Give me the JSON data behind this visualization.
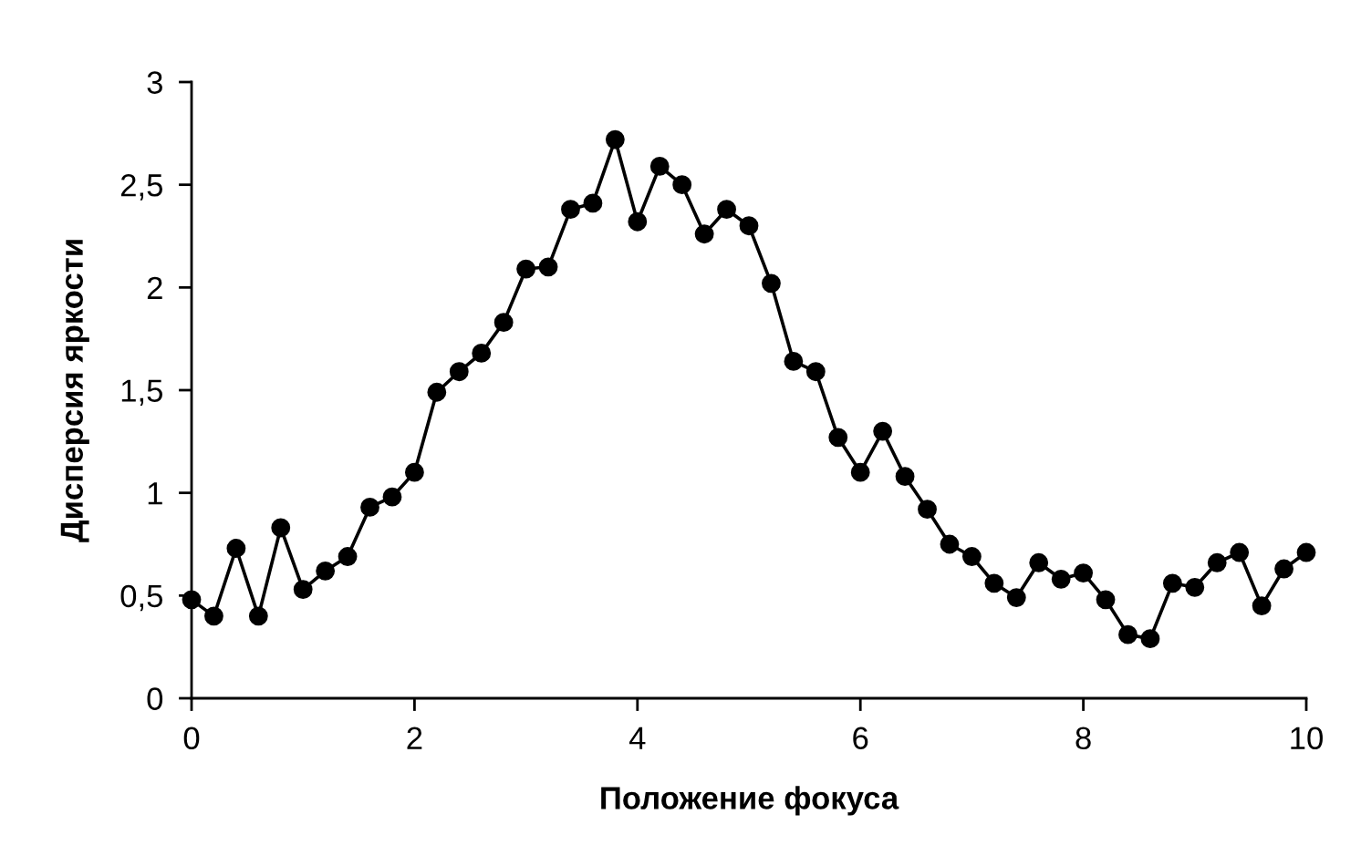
{
  "chart_data": {
    "type": "line",
    "xlabel": "Положение фокуса",
    "ylabel": "Дисперсия яркости",
    "x": [
      0,
      0.2,
      0.4,
      0.6,
      0.8,
      1,
      1.2,
      1.4,
      1.6,
      1.8,
      2,
      2.2,
      2.4,
      2.6,
      2.8,
      3,
      3.2,
      3.4,
      3.6,
      3.8,
      4,
      4.2,
      4.4,
      4.6,
      4.8,
      5,
      5.2,
      5.4,
      5.6,
      5.8,
      6,
      6.2,
      6.4,
      6.6,
      6.8,
      7,
      7.2,
      7.4,
      7.6,
      7.8,
      8,
      8.2,
      8.4,
      8.6,
      8.8,
      9,
      9.2,
      9.4,
      9.6,
      9.8,
      10
    ],
    "series": [
      {
        "color": "#000000",
        "values": [
          0.48,
          0.4,
          0.73,
          0.4,
          0.83,
          0.53,
          0.62,
          0.69,
          0.93,
          0.98,
          1.1,
          1.49,
          1.59,
          1.68,
          1.83,
          2.09,
          2.1,
          2.38,
          2.41,
          2.72,
          2.32,
          2.59,
          2.5,
          2.26,
          2.38,
          2.3,
          2.02,
          1.64,
          1.59,
          1.27,
          1.1,
          1.3,
          1.08,
          0.92,
          0.75,
          0.69,
          0.56,
          0.49,
          0.66,
          0.58,
          0.61,
          0.48,
          0.31,
          0.29,
          0.56,
          0.54,
          0.66,
          0.71,
          0.45,
          0.63,
          0.71
        ]
      }
    ],
    "xlim": [
      0,
      10
    ],
    "xticks": [
      0,
      2,
      4,
      6,
      8,
      10
    ],
    "ylim": [
      0,
      3
    ],
    "yticks": [
      0,
      {
        "value": 0.5,
        "label": "0,5"
      },
      1,
      {
        "value": 1.5,
        "label": "1,5"
      },
      2,
      {
        "value": 2.5,
        "label": "2,5"
      },
      3
    ],
    "marker": "circle",
    "line_style": "solid",
    "grid": false
  }
}
